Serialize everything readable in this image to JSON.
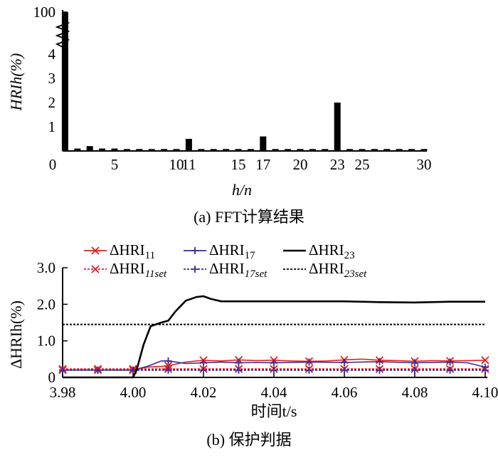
{
  "chart_data": [
    {
      "type": "bar",
      "caption": "(a) FFT计算结果",
      "xlabel": "h/n",
      "ylabel": "HRIh(%)",
      "ylim": [
        0,
        100
      ],
      "y_axis_break": "zigzag between 4 and 100",
      "ytick_labels": [
        "1",
        "2",
        "3",
        "4",
        "100"
      ],
      "xtick_labels": [
        "0",
        "5",
        "10",
        "11",
        "15",
        "17",
        "20",
        "23",
        "25",
        "30"
      ],
      "categories": [
        1,
        2,
        3,
        4,
        5,
        6,
        7,
        8,
        9,
        10,
        11,
        12,
        13,
        14,
        15,
        16,
        17,
        18,
        19,
        20,
        21,
        22,
        23,
        24,
        25,
        26,
        27,
        28,
        29,
        30
      ],
      "values": [
        100,
        0.1,
        0.2,
        0.1,
        0.1,
        0.08,
        0.08,
        0.08,
        0.08,
        0.08,
        0.5,
        0.08,
        0.08,
        0.08,
        0.08,
        0.08,
        0.6,
        0.08,
        0.08,
        0.08,
        0.08,
        0.08,
        2.0,
        0.08,
        0.08,
        0.08,
        0.08,
        0.08,
        0.08,
        0.08
      ],
      "bar_color": "#000000"
    },
    {
      "type": "line",
      "caption": "(b) 保护判据",
      "xlabel": "时间t/s",
      "ylabel": "ΔHRIh(%)",
      "xlim": [
        3.98,
        4.1
      ],
      "ylim": [
        0,
        3.0
      ],
      "xtick_labels": [
        "3.98",
        "4.00",
        "4.02",
        "4.04",
        "4.06",
        "4.08",
        "4.10"
      ],
      "ytick_labels": [
        "0",
        "1.0",
        "2.0",
        "3.0"
      ],
      "legend_position": "top",
      "series": [
        {
          "name": "ΔHRI11",
          "name_base": "ΔHRI",
          "name_sub": "11",
          "color": "#e02020",
          "style": "solid",
          "marker": "x",
          "x": [
            3.98,
            3.99,
            4.0,
            4.001,
            4.004,
            4.008,
            4.01,
            4.015,
            4.02,
            4.025,
            4.03,
            4.035,
            4.04,
            4.045,
            4.05,
            4.055,
            4.06,
            4.065,
            4.07,
            4.075,
            4.08,
            4.085,
            4.09,
            4.095,
            4.1
          ],
          "y": [
            0.2,
            0.2,
            0.2,
            0.22,
            0.28,
            0.3,
            0.32,
            0.42,
            0.47,
            0.45,
            0.48,
            0.46,
            0.47,
            0.45,
            0.44,
            0.45,
            0.48,
            0.5,
            0.47,
            0.46,
            0.44,
            0.46,
            0.45,
            0.46,
            0.47
          ],
          "marker_x": [
            3.98,
            3.99,
            4.0,
            4.01,
            4.02,
            4.03,
            4.04,
            4.05,
            4.06,
            4.07,
            4.08,
            4.09,
            4.1
          ]
        },
        {
          "name": "ΔHRI11set",
          "name_base": "ΔHRI",
          "name_sub": "11set",
          "color": "#e02020",
          "style": "dotted",
          "marker": "x",
          "x": [
            3.98,
            4.1
          ],
          "y": [
            0.23,
            0.23
          ],
          "marker_x": [
            3.98,
            3.99,
            4.0,
            4.01,
            4.02,
            4.03,
            4.04,
            4.05,
            4.06,
            4.07,
            4.08,
            4.09,
            4.1
          ]
        },
        {
          "name": "ΔHRI17",
          "name_base": "ΔHRI",
          "name_sub": "17",
          "color": "#3a2a9a",
          "style": "solid",
          "marker": "+",
          "x": [
            3.98,
            3.99,
            4.0,
            4.004,
            4.008,
            4.01,
            4.015,
            4.02,
            4.025,
            4.03,
            4.035,
            4.04,
            4.05,
            4.06,
            4.07,
            4.08,
            4.09,
            4.095,
            4.1
          ],
          "y": [
            0.2,
            0.2,
            0.2,
            0.3,
            0.45,
            0.45,
            0.38,
            0.4,
            0.42,
            0.4,
            0.41,
            0.4,
            0.42,
            0.41,
            0.43,
            0.4,
            0.42,
            0.4,
            0.28
          ],
          "marker_x": [
            3.98,
            3.99,
            4.0,
            4.01,
            4.02,
            4.03,
            4.04,
            4.05,
            4.06,
            4.07,
            4.08,
            4.09,
            4.1
          ]
        },
        {
          "name": "ΔHRI17set",
          "name_base": "ΔHRI",
          "name_sub": "17set",
          "color": "#3a2a9a",
          "style": "dotted",
          "marker": "+",
          "x": [
            3.98,
            4.1
          ],
          "y": [
            0.2,
            0.2
          ],
          "marker_x": [
            3.98,
            3.99,
            4.0,
            4.01,
            4.02,
            4.03,
            4.04,
            4.05,
            4.06,
            4.07,
            4.08,
            4.09,
            4.1
          ]
        },
        {
          "name": "ΔHRI23",
          "name_base": "ΔHRI",
          "name_sub": "23",
          "color": "#000000",
          "style": "solid",
          "marker": "none",
          "x": [
            3.98,
            3.99,
            4.0,
            4.001,
            4.003,
            4.005,
            4.008,
            4.01,
            4.012,
            4.015,
            4.018,
            4.02,
            4.022,
            4.025,
            4.03,
            4.04,
            4.05,
            4.06,
            4.07,
            4.08,
            4.09,
            4.1
          ],
          "y": [
            0.0,
            0.0,
            0.0,
            0.2,
            0.9,
            1.4,
            1.5,
            1.55,
            1.8,
            2.1,
            2.2,
            2.22,
            2.15,
            2.08,
            2.08,
            2.08,
            2.08,
            2.08,
            2.06,
            2.05,
            2.07,
            2.07
          ],
          "marker_x": []
        },
        {
          "name": "ΔHRI23set",
          "name_base": "ΔHRI",
          "name_sub": "23set",
          "color": "#000000",
          "style": "dotted",
          "marker": "none",
          "x": [
            3.98,
            4.1
          ],
          "y": [
            1.45,
            1.45
          ],
          "marker_x": []
        }
      ]
    }
  ]
}
